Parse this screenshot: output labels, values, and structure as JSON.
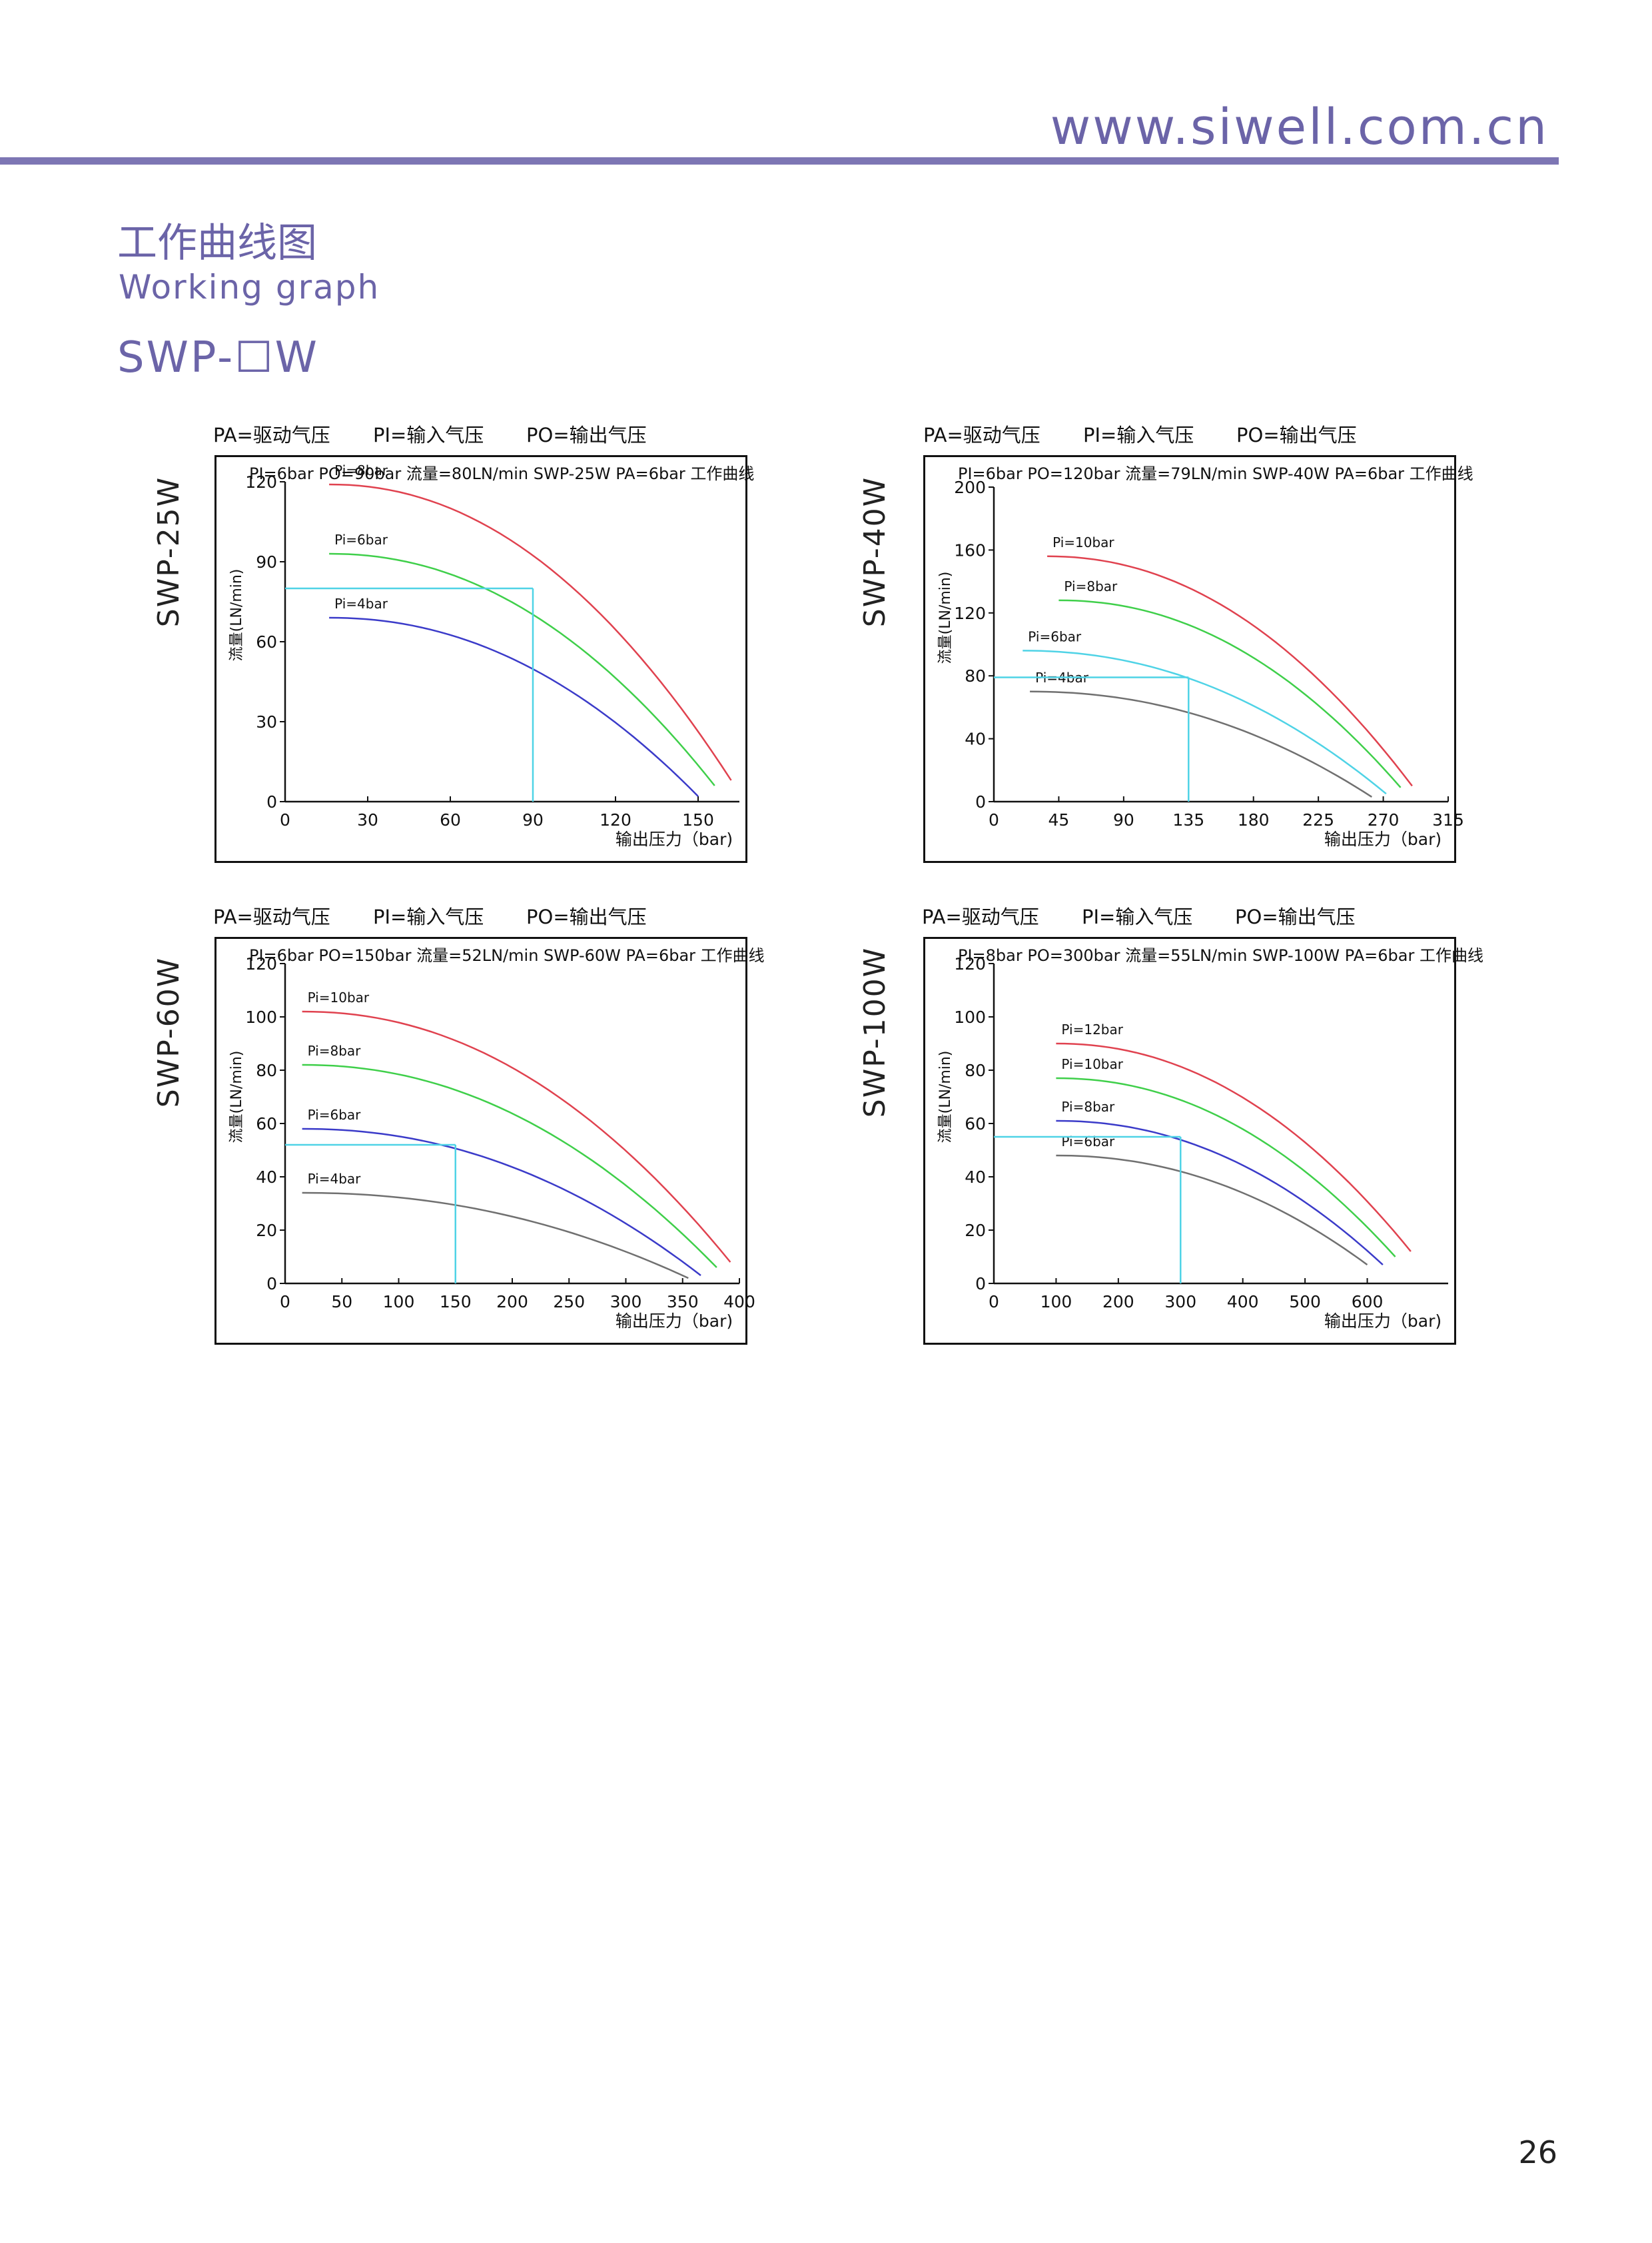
{
  "header": {
    "site_url": "www.siwell.com.cn",
    "accent_color": "#7d76b4",
    "title_cn": "工作曲线图",
    "title_en": "Working graph",
    "model_title": "SWP-☐W"
  },
  "page_number": "26",
  "colors": {
    "blue_guide": "#4fd3e6",
    "red": "#e0424f",
    "green": "#3fcf4a",
    "blue": "#3b3bc9",
    "cyan": "#4fd3e6",
    "gray": "#707070"
  },
  "chart_data": [
    {
      "type": "line",
      "model": "SWP-25W",
      "legend": {
        "pa": "PA=驱动气压",
        "pi": "PI=输入气压",
        "po": "PO=输出气压"
      },
      "info": "PI=6bar  PO=90bar  流量=80LN/min SWP-25W PA=6bar 工作曲线",
      "xlabel": "输出压力（bar)",
      "ylabel": "流量(LN/min)",
      "xlim": [
        0,
        165
      ],
      "ylim": [
        0,
        120
      ],
      "xticks": [
        0,
        30,
        60,
        90,
        120,
        150
      ],
      "yticks": [
        0,
        30,
        60,
        90,
        120
      ],
      "marker": {
        "x": 90,
        "y": 80,
        "color": "cyan"
      },
      "series": [
        {
          "name": "Pi=8bar",
          "color": "red",
          "start_x": 16,
          "start_y": 119,
          "end_x": 162,
          "end_y": 8
        },
        {
          "name": "Pi=6bar",
          "color": "green",
          "start_x": 16,
          "start_y": 93,
          "end_x": 156,
          "end_y": 6
        },
        {
          "name": "Pi=4bar",
          "color": "blue",
          "start_x": 16,
          "start_y": 69,
          "end_x": 150,
          "end_y": 2
        }
      ]
    },
    {
      "type": "line",
      "model": "SWP-40W",
      "legend": {
        "pa": "PA=驱动气压",
        "pi": "PI=输入气压",
        "po": "PO=输出气压"
      },
      "info": "PI=6bar  PO=120bar  流量=79LN/min SWP-40W PA=6bar 工作曲线",
      "xlabel": "输出压力（bar)",
      "ylabel": "流量(LN/min)",
      "xlim": [
        0,
        315
      ],
      "ylim": [
        0,
        200
      ],
      "xticks": [
        0,
        45,
        90,
        135,
        180,
        225,
        270,
        315
      ],
      "yticks": [
        0,
        40,
        80,
        120,
        160,
        200
      ],
      "marker": {
        "x": 135,
        "y": 79,
        "color": "cyan"
      },
      "series": [
        {
          "name": "Pi=10bar",
          "color": "red",
          "start_x": 37,
          "start_y": 156,
          "end_x": 290,
          "end_y": 10
        },
        {
          "name": "Pi=8bar",
          "color": "green",
          "start_x": 45,
          "start_y": 128,
          "end_x": 282,
          "end_y": 9
        },
        {
          "name": "Pi=6bar",
          "color": "cyan",
          "start_x": 20,
          "start_y": 96,
          "end_x": 272,
          "end_y": 5
        },
        {
          "name": "Pi=4bar",
          "color": "gray",
          "start_x": 25,
          "start_y": 70,
          "end_x": 262,
          "end_y": 3
        }
      ]
    },
    {
      "type": "line",
      "model": "SWP-60W",
      "legend": {
        "pa": "PA=驱动气压",
        "pi": "PI=输入气压",
        "po": "PO=输出气压"
      },
      "info": "PI=6bar  PO=150bar  流量=52LN/min SWP-60W PA=6bar 工作曲线",
      "xlabel": "输出压力（bar)",
      "ylabel": "流量(LN/min)",
      "xlim": [
        0,
        400
      ],
      "ylim": [
        0,
        120
      ],
      "xticks": [
        0,
        50,
        100,
        150,
        200,
        250,
        300,
        350,
        400
      ],
      "yticks": [
        0,
        20,
        40,
        60,
        80,
        100,
        120
      ],
      "marker": {
        "x": 150,
        "y": 52,
        "color": "cyan"
      },
      "series": [
        {
          "name": "Pi=10bar",
          "color": "red",
          "start_x": 15,
          "start_y": 102,
          "end_x": 392,
          "end_y": 8
        },
        {
          "name": "Pi=8bar",
          "color": "green",
          "start_x": 15,
          "start_y": 82,
          "end_x": 380,
          "end_y": 6
        },
        {
          "name": "Pi=6bar",
          "color": "blue",
          "start_x": 15,
          "start_y": 58,
          "end_x": 366,
          "end_y": 3
        },
        {
          "name": "Pi=4bar",
          "color": "gray",
          "start_x": 15,
          "start_y": 34,
          "end_x": 355,
          "end_y": 2
        }
      ]
    },
    {
      "type": "line",
      "model": "SWP-100W",
      "legend": {
        "pa": "PA=驱动气压",
        "pi": "PI=输入气压",
        "po": "PO=输出气压"
      },
      "info": "PI=8bar  PO=300bar  流量=55LN/min SWP-100W PA=6bar 工作曲线",
      "xlabel": "输出压力（bar)",
      "ylabel": "流量(LN/min)",
      "xlim": [
        0,
        730
      ],
      "ylim": [
        0,
        120
      ],
      "xticks": [
        0,
        100,
        200,
        300,
        400,
        500,
        600
      ],
      "yticks": [
        0,
        20,
        40,
        60,
        80,
        100,
        120
      ],
      "marker": {
        "x": 300,
        "y": 55,
        "color": "cyan"
      },
      "series": [
        {
          "name": "Pi=12bar",
          "color": "red",
          "start_x": 100,
          "start_y": 90,
          "end_x": 670,
          "end_y": 12
        },
        {
          "name": "Pi=10bar",
          "color": "green",
          "start_x": 100,
          "start_y": 77,
          "end_x": 645,
          "end_y": 10
        },
        {
          "name": "Pi=8bar",
          "color": "blue",
          "start_x": 100,
          "start_y": 61,
          "end_x": 625,
          "end_y": 7
        },
        {
          "name": "Pi=6bar",
          "color": "gray",
          "start_x": 100,
          "start_y": 48,
          "end_x": 600,
          "end_y": 7
        }
      ]
    }
  ]
}
